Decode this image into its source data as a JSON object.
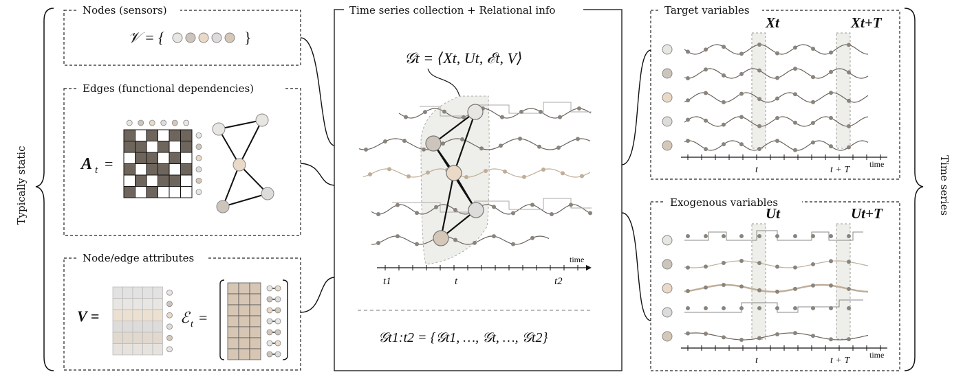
{
  "side_labels": {
    "left": "Typically static",
    "right": "Time series"
  },
  "panels": {
    "nodes": {
      "title": "Nodes (sensors)",
      "formula_lhs": "𝒱 = {",
      "formula_rhs": "}"
    },
    "edges": {
      "title": "Edges (functional  dependencies)",
      "formula": "A"
    },
    "attributes": {
      "title": "Node/edge attributes",
      "v_formula": "V =",
      "e_formula": "ℰ"
    },
    "center": {
      "title": "Time series collection + Relational info",
      "graph_formula": "𝒢t = ⟨Xt, Ut, ℰt, V⟩",
      "time_label": "time",
      "ticks": [
        "t1",
        "t",
        "t2"
      ],
      "collection_formula": "𝒢t1:t2 = {𝒢t1, …, 𝒢t, …, 𝒢t2}"
    },
    "target": {
      "title": "Target variables",
      "window_labels": [
        "Xt",
        "Xt+T"
      ],
      "ticks": [
        "t",
        "t + T"
      ],
      "time_label": "time"
    },
    "exogenous": {
      "title": "Exogenous variables",
      "window_labels": [
        "Ut",
        "Ut+T"
      ],
      "ticks": [
        "t",
        "t + T"
      ],
      "time_label": "time"
    }
  },
  "colors": {
    "node_fills": [
      "#e8e6e3",
      "#cdc5bc",
      "#ead9c6",
      "#dedcda",
      "#d6c8b8"
    ],
    "edge_dark": "#7a736b",
    "series": "#6a645e",
    "series_light": "#bfae98",
    "window_fill": "#eeeeea"
  }
}
